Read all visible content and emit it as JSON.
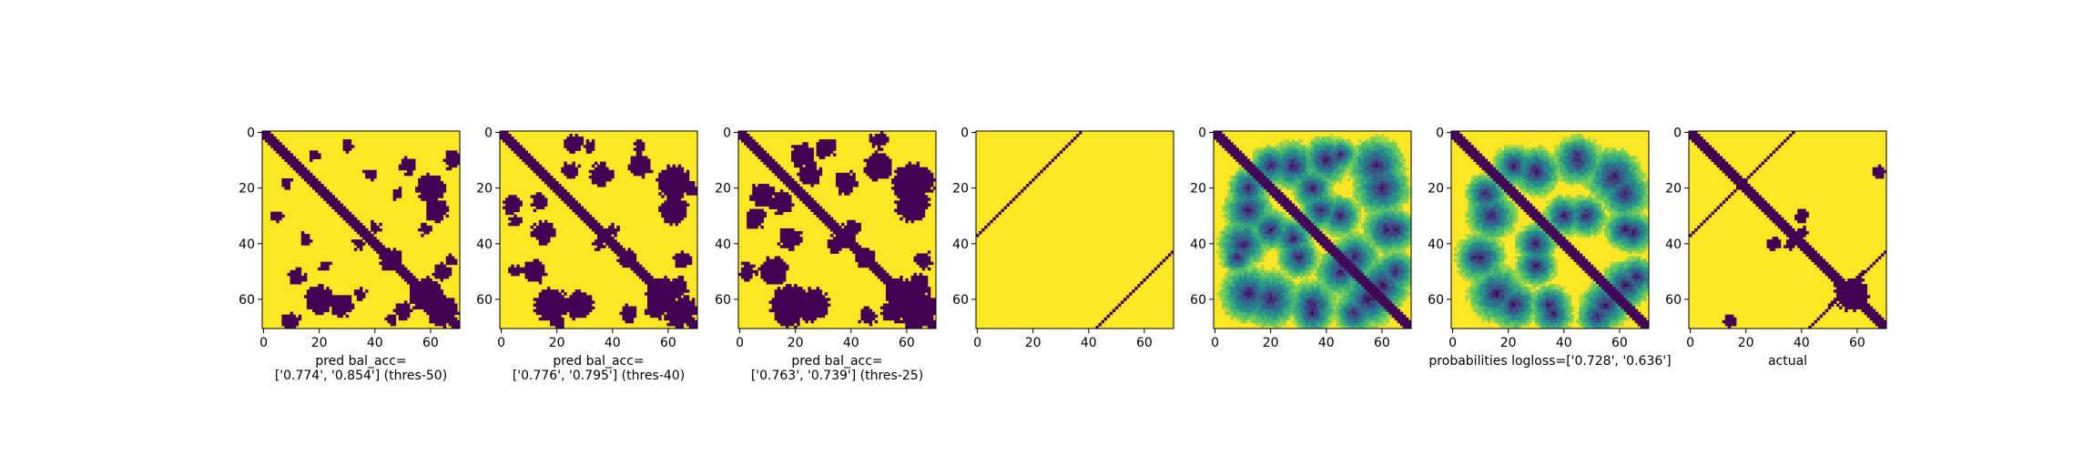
{
  "chart_data": [
    {
      "type": "heatmap",
      "matrix_size": 71,
      "colormap": "viridis",
      "binary": true,
      "xticks": [
        0,
        20,
        40,
        60
      ],
      "yticks": [
        0,
        20,
        40,
        60
      ],
      "xlabel": [
        "pred bal_acc=",
        "['0.774', '0.854'] (thres-50)"
      ],
      "seed": 11,
      "blobs": [
        [
          12,
          52,
          3
        ],
        [
          28,
          62,
          4
        ],
        [
          38,
          15,
          2
        ],
        [
          58,
          35,
          2
        ],
        [
          60,
          20,
          5
        ],
        [
          50,
          64,
          3
        ],
        [
          18,
          8,
          2
        ],
        [
          67,
          46,
          2
        ],
        [
          5,
          30,
          2
        ],
        [
          45,
          46,
          3
        ],
        [
          10,
          68,
          3
        ],
        [
          22,
          48,
          2
        ],
        [
          66,
          63,
          4
        ],
        [
          40,
          34,
          2
        ]
      ]
    },
    {
      "type": "heatmap",
      "matrix_size": 71,
      "colormap": "viridis",
      "binary": true,
      "xticks": [
        0,
        20,
        40,
        60
      ],
      "yticks": [
        0,
        20,
        40,
        60
      ],
      "xlabel": [
        "pred bal_acc=",
        "['0.776', '0.795'] (thres-40)"
      ],
      "seed": 23,
      "blobs": [
        [
          12,
          50,
          4
        ],
        [
          14,
          25,
          3
        ],
        [
          28,
          62,
          5
        ],
        [
          36,
          15,
          4
        ],
        [
          62,
          18,
          6
        ],
        [
          55,
          64,
          3
        ],
        [
          20,
          60,
          3
        ],
        [
          65,
          46,
          3
        ],
        [
          5,
          32,
          2
        ],
        [
          45,
          45,
          3
        ],
        [
          26,
          4,
          3
        ],
        [
          66,
          63,
          4
        ],
        [
          40,
          35,
          2
        ],
        [
          20,
          68,
          3
        ],
        [
          50,
          5,
          2
        ]
      ]
    },
    {
      "type": "heatmap",
      "matrix_size": 71,
      "colormap": "viridis",
      "binary": true,
      "xticks": [
        0,
        20,
        40,
        60
      ],
      "yticks": [
        0,
        20,
        40,
        60
      ],
      "xlabel": [
        "pred bal_acc=",
        "['0.763', '0.739'] (thres-25)"
      ],
      "seed": 37,
      "blobs": [
        [
          12,
          50,
          5
        ],
        [
          15,
          25,
          4
        ],
        [
          26,
          62,
          6
        ],
        [
          38,
          18,
          4
        ],
        [
          62,
          18,
          7
        ],
        [
          55,
          64,
          4
        ],
        [
          22,
          8,
          4
        ],
        [
          66,
          46,
          3
        ],
        [
          5,
          32,
          3
        ],
        [
          45,
          45,
          3
        ],
        [
          30,
          6,
          3
        ],
        [
          66,
          63,
          5
        ],
        [
          40,
          35,
          3
        ],
        [
          18,
          66,
          4
        ],
        [
          50,
          3,
          3
        ]
      ]
    },
    {
      "type": "heatmap",
      "matrix_size": 71,
      "colormap": "viridis",
      "binary": true,
      "xticks": [
        0,
        20,
        40,
        60
      ],
      "yticks": [
        0,
        20,
        40,
        60
      ],
      "xlabel": [
        "",
        ""
      ],
      "line_segments": [
        [
          [
            0,
            37
          ],
          [
            37,
            0
          ]
        ],
        [
          [
            43,
            70
          ],
          [
            70,
            43
          ]
        ]
      ]
    },
    {
      "type": "heatmap",
      "matrix_size": 71,
      "colormap": "viridis",
      "binary": false,
      "xticks": [
        0,
        20,
        40,
        60
      ],
      "yticks": [
        0,
        20,
        40,
        60
      ],
      "xlabel": [
        "",
        ""
      ],
      "seed": 51,
      "blobs": [
        [
          10,
          40,
          6
        ],
        [
          20,
          60,
          7
        ],
        [
          28,
          12,
          6
        ],
        [
          38,
          28,
          5
        ],
        [
          45,
          50,
          6
        ],
        [
          58,
          12,
          7
        ],
        [
          62,
          35,
          6
        ],
        [
          55,
          60,
          7
        ],
        [
          30,
          45,
          5
        ],
        [
          12,
          20,
          5
        ],
        [
          65,
          50,
          5
        ],
        [
          20,
          35,
          5
        ],
        [
          45,
          8,
          4
        ],
        [
          35,
          65,
          5
        ]
      ]
    },
    {
      "type": "heatmap",
      "matrix_size": 71,
      "colormap": "viridis",
      "binary": false,
      "xticks": [
        0,
        20,
        40,
        60
      ],
      "yticks": [
        0,
        20,
        40,
        60
      ],
      "xlabel": [
        "probabilities logloss=['0.728', '0.636']",
        ""
      ],
      "seed": 67,
      "blobs": [
        [
          10,
          45,
          6
        ],
        [
          22,
          62,
          6
        ],
        [
          30,
          14,
          6
        ],
        [
          40,
          30,
          5
        ],
        [
          58,
          16,
          7
        ],
        [
          62,
          35,
          5
        ],
        [
          55,
          62,
          6
        ],
        [
          30,
          48,
          5
        ],
        [
          12,
          22,
          5
        ],
        [
          66,
          52,
          5
        ],
        [
          45,
          8,
          4
        ],
        [
          36,
          65,
          5
        ]
      ]
    },
    {
      "type": "heatmap",
      "matrix_size": 71,
      "colormap": "viridis",
      "binary": true,
      "xticks": [
        0,
        20,
        40,
        60
      ],
      "yticks": [
        0,
        20,
        40,
        60
      ],
      "xlabel": [
        "actual",
        ""
      ],
      "seed": 79,
      "line_segments": [
        [
          [
            0,
            37
          ],
          [
            37,
            0
          ]
        ],
        [
          [
            43,
            70
          ],
          [
            70,
            43
          ]
        ],
        [
          [
            50,
            62
          ],
          [
            62,
            50
          ]
        ]
      ],
      "blobs": [
        [
          30,
          40,
          2
        ],
        [
          40,
          30,
          2
        ],
        [
          36,
          40,
          2
        ],
        [
          14,
          68,
          2
        ],
        [
          68,
          14,
          2
        ]
      ]
    }
  ]
}
